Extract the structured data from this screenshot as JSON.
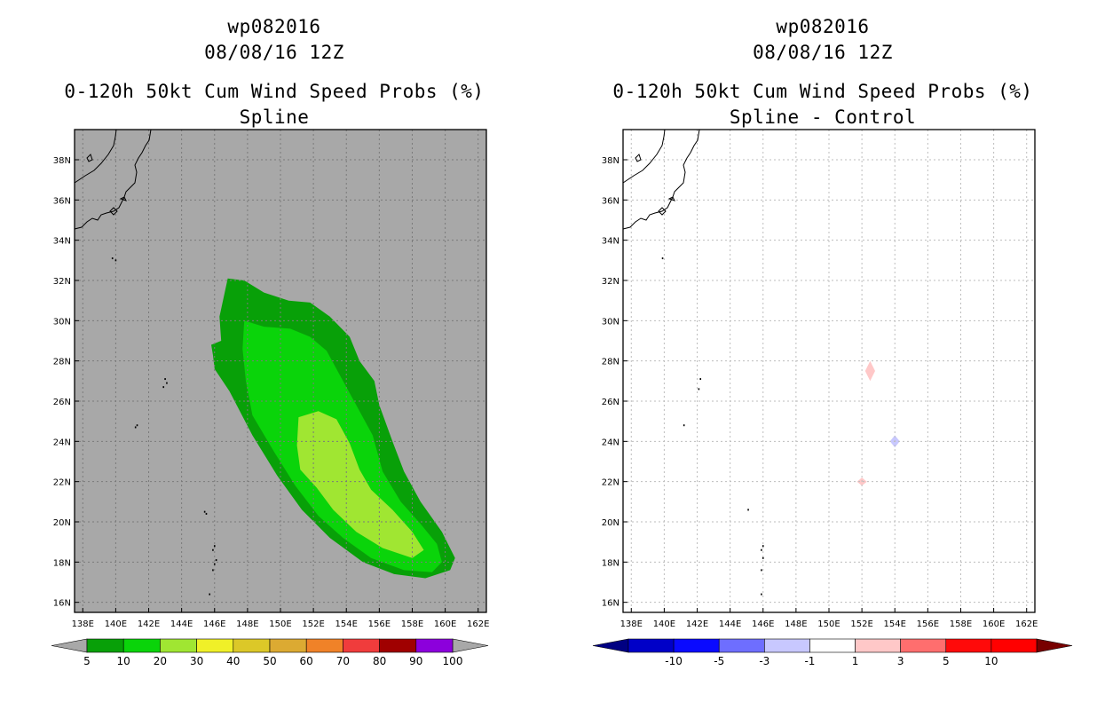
{
  "chart_data": [
    {
      "type": "filled-contour-map",
      "title": [
        "wp082016",
        "08/08/16 12Z",
        "0-120h 50kt Cum Wind Speed Probs (%)",
        "Spline"
      ],
      "x_ticks": [
        "138E",
        "140E",
        "142E",
        "144E",
        "146E",
        "148E",
        "150E",
        "152E",
        "154E",
        "156E",
        "158E",
        "160E",
        "162E"
      ],
      "y_ticks": [
        "16N",
        "18N",
        "20N",
        "22N",
        "24N",
        "26N",
        "28N",
        "30N",
        "32N",
        "34N",
        "36N",
        "38N"
      ],
      "xlim": [
        137.5,
        162.5
      ],
      "ylim": [
        15.5,
        39.5
      ],
      "background": "#a8a8a8",
      "contours": [
        {
          "level": 5,
          "color": "#08a008",
          "lonlat": [
            [
              146.8,
              32.1
            ],
            [
              147.8,
              32.0
            ],
            [
              149.0,
              31.4
            ],
            [
              150.5,
              31.0
            ],
            [
              151.8,
              30.9
            ],
            [
              153.0,
              30.2
            ],
            [
              154.2,
              29.2
            ],
            [
              154.8,
              28.0
            ],
            [
              155.7,
              27.0
            ],
            [
              156.0,
              25.8
            ],
            [
              156.8,
              24.0
            ],
            [
              157.5,
              22.5
            ],
            [
              158.5,
              21.0
            ],
            [
              159.8,
              19.5
            ],
            [
              160.6,
              18.2
            ],
            [
              160.3,
              17.6
            ],
            [
              158.8,
              17.2
            ],
            [
              156.9,
              17.4
            ],
            [
              155.0,
              18.0
            ],
            [
              153.0,
              19.2
            ],
            [
              151.3,
              20.6
            ],
            [
              149.8,
              22.3
            ],
            [
              148.3,
              24.3
            ],
            [
              146.9,
              26.5
            ],
            [
              146.0,
              27.6
            ],
            [
              145.9,
              28.3
            ],
            [
              145.8,
              28.8
            ],
            [
              146.4,
              29.0
            ],
            [
              146.3,
              30.2
            ],
            [
              146.8,
              32.1
            ]
          ]
        },
        {
          "level": 10,
          "color": "#0ad40a",
          "lonlat": [
            [
              147.8,
              30.0
            ],
            [
              149.0,
              29.7
            ],
            [
              150.6,
              29.6
            ],
            [
              151.8,
              29.2
            ],
            [
              152.8,
              28.5
            ],
            [
              153.8,
              27.0
            ],
            [
              154.8,
              25.5
            ],
            [
              155.6,
              24.3
            ],
            [
              156.2,
              22.5
            ],
            [
              157.3,
              21.0
            ],
            [
              158.5,
              19.9
            ],
            [
              159.5,
              18.9
            ],
            [
              159.8,
              18.0
            ],
            [
              159.2,
              17.5
            ],
            [
              157.5,
              17.6
            ],
            [
              155.5,
              18.2
            ],
            [
              153.8,
              19.2
            ],
            [
              152.3,
              20.3
            ],
            [
              150.9,
              21.8
            ],
            [
              149.6,
              23.5
            ],
            [
              148.3,
              25.3
            ],
            [
              147.9,
              27.0
            ],
            [
              147.7,
              28.6
            ],
            [
              147.8,
              30.0
            ]
          ]
        },
        {
          "level": 20,
          "color": "#a0e632",
          "lonlat": [
            [
              151.1,
              25.2
            ],
            [
              152.3,
              25.5
            ],
            [
              153.4,
              25.1
            ],
            [
              154.2,
              23.9
            ],
            [
              154.8,
              22.6
            ],
            [
              155.5,
              21.6
            ],
            [
              156.8,
              20.6
            ],
            [
              158.0,
              19.5
            ],
            [
              158.7,
              18.6
            ],
            [
              158.0,
              18.2
            ],
            [
              156.2,
              18.7
            ],
            [
              154.6,
              19.5
            ],
            [
              153.2,
              20.6
            ],
            [
              152.2,
              21.7
            ],
            [
              151.2,
              22.6
            ],
            [
              151.0,
              23.8
            ],
            [
              151.1,
              25.2
            ]
          ]
        }
      ],
      "islands": [
        [
          [
            143.0,
            27.1
          ],
          [
            142.9,
            26.7
          ],
          [
            143.1,
            26.9
          ]
        ],
        [
          [
            141.3,
            24.8
          ],
          [
            141.2,
            24.7
          ]
        ],
        [
          [
            145.4,
            20.5
          ],
          [
            145.5,
            20.4
          ]
        ],
        [
          [
            146.0,
            18.8
          ],
          [
            145.9,
            18.6
          ]
        ],
        [
          [
            146.1,
            18.1
          ],
          [
            146.0,
            17.9
          ]
        ],
        [
          [
            145.9,
            17.6
          ]
        ],
        [
          [
            145.7,
            16.4
          ]
        ],
        [
          [
            139.8,
            33.1
          ],
          [
            140.0,
            33.0
          ]
        ]
      ],
      "colorbar": {
        "labels": [
          "5",
          "10",
          "20",
          "30",
          "40",
          "50",
          "60",
          "70",
          "80",
          "90",
          "100"
        ],
        "colors": [
          "#08a008",
          "#0ad40a",
          "#a0e632",
          "#f0f028",
          "#dcc828",
          "#dcaa32",
          "#f08228",
          "#f03c3c",
          "#a00000",
          "#8c00dc"
        ],
        "end_color": "#a8a8a8"
      }
    },
    {
      "type": "filled-contour-map",
      "title": [
        "wp082016",
        "08/08/16 12Z",
        "0-120h 50kt Cum Wind Speed Probs (%)",
        "Spline - Control"
      ],
      "x_ticks": [
        "138E",
        "140E",
        "142E",
        "144E",
        "146E",
        "148E",
        "150E",
        "152E",
        "154E",
        "156E",
        "158E",
        "160E",
        "162E"
      ],
      "y_ticks": [
        "16N",
        "18N",
        "20N",
        "22N",
        "24N",
        "26N",
        "28N",
        "30N",
        "32N",
        "34N",
        "36N",
        "38N"
      ],
      "xlim": [
        137.5,
        162.5
      ],
      "ylim": [
        15.5,
        39.5
      ],
      "background": "#ffffff",
      "grid": true,
      "contours": [
        {
          "level": 1,
          "color": "#ffc8c8",
          "lonlat": [
            [
              152.5,
              28.0
            ],
            [
              152.8,
              27.5
            ],
            [
              152.5,
              27.0
            ],
            [
              152.2,
              27.5
            ]
          ]
        },
        {
          "level": -1,
          "color": "#c8c8ff",
          "lonlat": [
            [
              154.0,
              24.3
            ],
            [
              154.3,
              24.0
            ],
            [
              154.0,
              23.7
            ],
            [
              153.7,
              24.0
            ]
          ]
        },
        {
          "level": 1,
          "color": "#ffc8c8",
          "lonlat": [
            [
              152.0,
              22.2
            ],
            [
              152.3,
              22.0
            ],
            [
              152.0,
              21.8
            ],
            [
              151.7,
              22.0
            ]
          ]
        }
      ],
      "islands": [
        [
          [
            142.2,
            27.1
          ],
          [
            142.1,
            26.6
          ]
        ],
        [
          [
            141.2,
            24.8
          ]
        ],
        [
          [
            145.1,
            20.6
          ]
        ],
        [
          [
            146.0,
            18.8
          ],
          [
            145.9,
            18.6
          ]
        ],
        [
          [
            146.0,
            18.2
          ]
        ],
        [
          [
            145.9,
            17.6
          ]
        ],
        [
          [
            145.9,
            16.4
          ]
        ],
        [
          [
            139.9,
            33.1
          ]
        ]
      ],
      "colorbar": {
        "labels": [
          "-10",
          "-5",
          "-3",
          "-1",
          "1",
          "3",
          "5",
          "10"
        ],
        "colors": [
          "#0000c8",
          "#0a0aff",
          "#6e6eff",
          "#c8c8ff",
          "#ffffff",
          "#ffc8c8",
          "#ff6e6e",
          "#ff0a0a",
          "#ff0000"
        ],
        "end_colors": [
          "#000082",
          "#780000"
        ]
      }
    }
  ]
}
